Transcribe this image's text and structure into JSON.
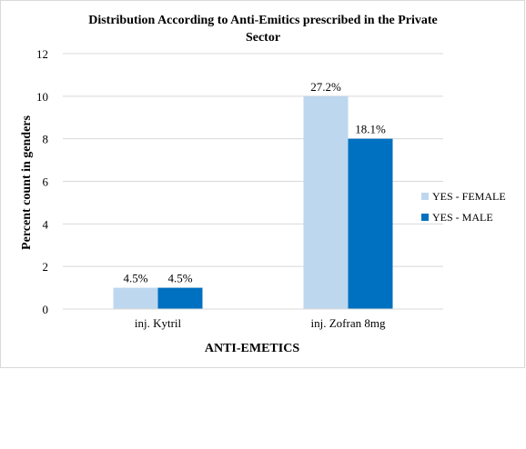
{
  "chart_data": {
    "type": "bar",
    "title_line1": "Distribution According to Anti-Emitics prescribed in the Private",
    "title_line2": "Sector",
    "xlabel": "ANTI-EMETICS",
    "ylabel": "Percent count in genders",
    "categories": [
      "inj. Kytril",
      "inj. Zofran 8mg"
    ],
    "y_ticks": [
      "0",
      "2",
      "4",
      "6",
      "8",
      "10",
      "12"
    ],
    "ylim": [
      0,
      12
    ],
    "grid": true,
    "legend_position": "right",
    "series": [
      {
        "name": "YES - FEMALE",
        "color": "#bdd7ee",
        "values": [
          1,
          10
        ],
        "data_labels": [
          "4.5%",
          "27.2%"
        ]
      },
      {
        "name": "YES - MALE",
        "color": "#0070c0",
        "values": [
          1,
          8
        ],
        "data_labels": [
          "4.5%",
          "18.1%"
        ]
      }
    ]
  }
}
